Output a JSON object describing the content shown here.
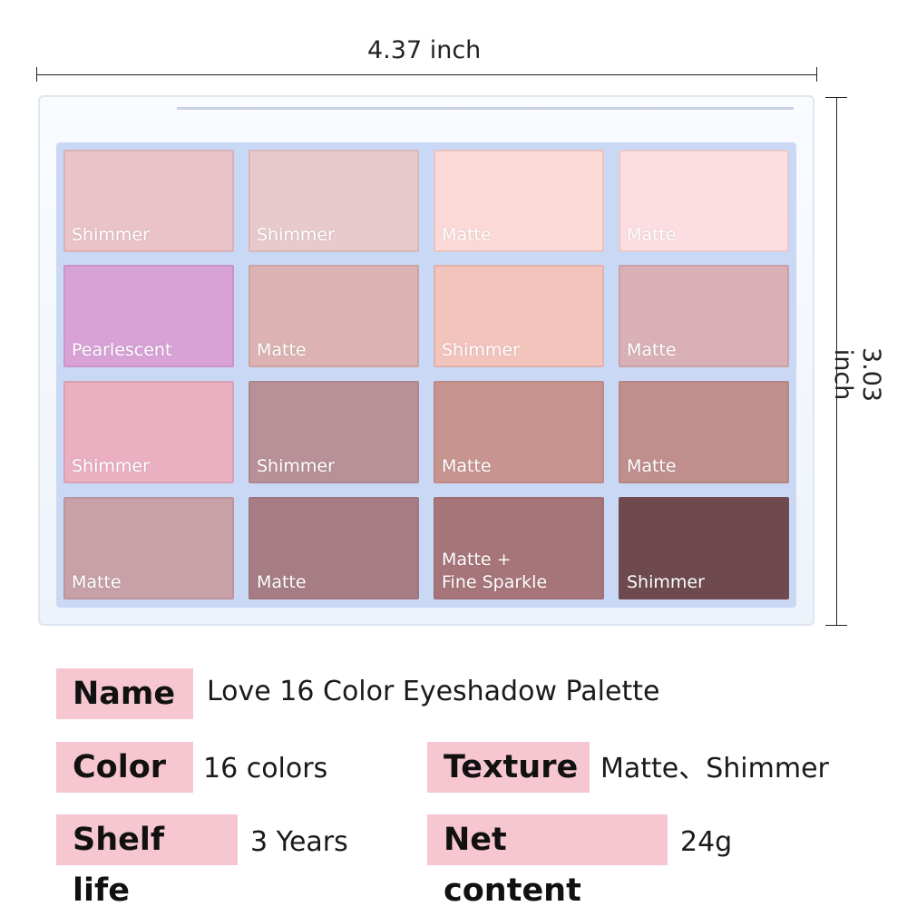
{
  "dimensions": {
    "width_label": "4.37 inch",
    "height_label": "3.03 inch"
  },
  "palette": {
    "rows": [
      [
        {
          "texture": "Shimmer",
          "color": "#e9c3c8"
        },
        {
          "texture": "Shimmer",
          "color": "#e8cacd"
        },
        {
          "texture": "Matte",
          "color": "#fbd9d6"
        },
        {
          "texture": "Matte",
          "color": "#fbdde2"
        }
      ],
      [
        {
          "texture": "Pearlescent",
          "color": "#d9a2d6"
        },
        {
          "texture": "Matte",
          "color": "#dcb3b2"
        },
        {
          "texture": "Shimmer",
          "color": "#f3c4bc"
        },
        {
          "texture": "Matte",
          "color": "#d9b0b6"
        }
      ],
      [
        {
          "texture": "Shimmer",
          "color": "#eab0c2"
        },
        {
          "texture": "Shimmer",
          "color": "#b89097"
        },
        {
          "texture": "Matte",
          "color": "#c8948f"
        },
        {
          "texture": "Matte",
          "color": "#c08f8d"
        }
      ],
      [
        {
          "texture": "Matte",
          "color": "#c7a0a8"
        },
        {
          "texture": "Matte",
          "color": "#a77d85"
        },
        {
          "texture": "Matte +\nFine Sparkle",
          "color": "#a6757a"
        },
        {
          "texture": "Shimmer",
          "color": "#6e4a4f"
        }
      ]
    ]
  },
  "specs": {
    "name": {
      "label": "Name",
      "value": "Love 16 Color Eyeshadow Palette"
    },
    "color": {
      "label": "Color",
      "value": "16 colors"
    },
    "texture": {
      "label": "Texture",
      "value": "Matte、Shimmer"
    },
    "shelf_life": {
      "label": "Shelf life",
      "value": "3 Years"
    },
    "net_content": {
      "label": "Net content",
      "value": "24g"
    }
  },
  "colors": {
    "label_bg": "#f6c7d1",
    "grid": "#c9d8f5"
  }
}
